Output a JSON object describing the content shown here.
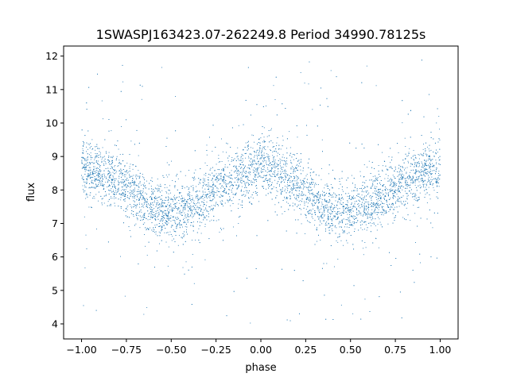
{
  "chart_data": {
    "type": "scatter",
    "title": "1SWASPJ163423.07-262249.8 Period 34990.78125s",
    "xlabel": "phase",
    "ylabel": "flux",
    "xlim": [
      -1.1,
      1.1
    ],
    "ylim": [
      3.55,
      12.3
    ],
    "xticks": [
      -1.0,
      -0.75,
      -0.5,
      -0.25,
      0.0,
      0.25,
      0.5,
      0.75,
      1.0
    ],
    "xtick_labels": [
      "−1.00",
      "−0.75",
      "−0.50",
      "−0.25",
      "0.00",
      "0.25",
      "0.50",
      "0.75",
      "1.00"
    ],
    "yticks": [
      4,
      5,
      6,
      7,
      8,
      9,
      10,
      11,
      12
    ],
    "ytick_labels": [
      "4",
      "5",
      "6",
      "7",
      "8",
      "9",
      "10",
      "11",
      "12"
    ],
    "grid": false,
    "legend": "none",
    "marker_color": "#1f77b4",
    "trend": {
      "x": [
        -1.0,
        -0.9,
        -0.8,
        -0.7,
        -0.6,
        -0.5,
        -0.4,
        -0.3,
        -0.2,
        -0.1,
        0.0,
        0.1,
        0.2,
        0.3,
        0.4,
        0.5,
        0.6,
        0.7,
        0.8,
        0.9,
        1.0
      ],
      "y": [
        8.6,
        8.5,
        8.3,
        7.9,
        7.45,
        7.35,
        7.45,
        7.8,
        8.2,
        8.5,
        8.7,
        8.55,
        8.2,
        7.8,
        7.4,
        7.35,
        7.5,
        7.9,
        8.2,
        8.5,
        8.65
      ]
    },
    "scatter_sd": 0.42,
    "outlier_range": [
      4.0,
      11.9
    ]
  }
}
